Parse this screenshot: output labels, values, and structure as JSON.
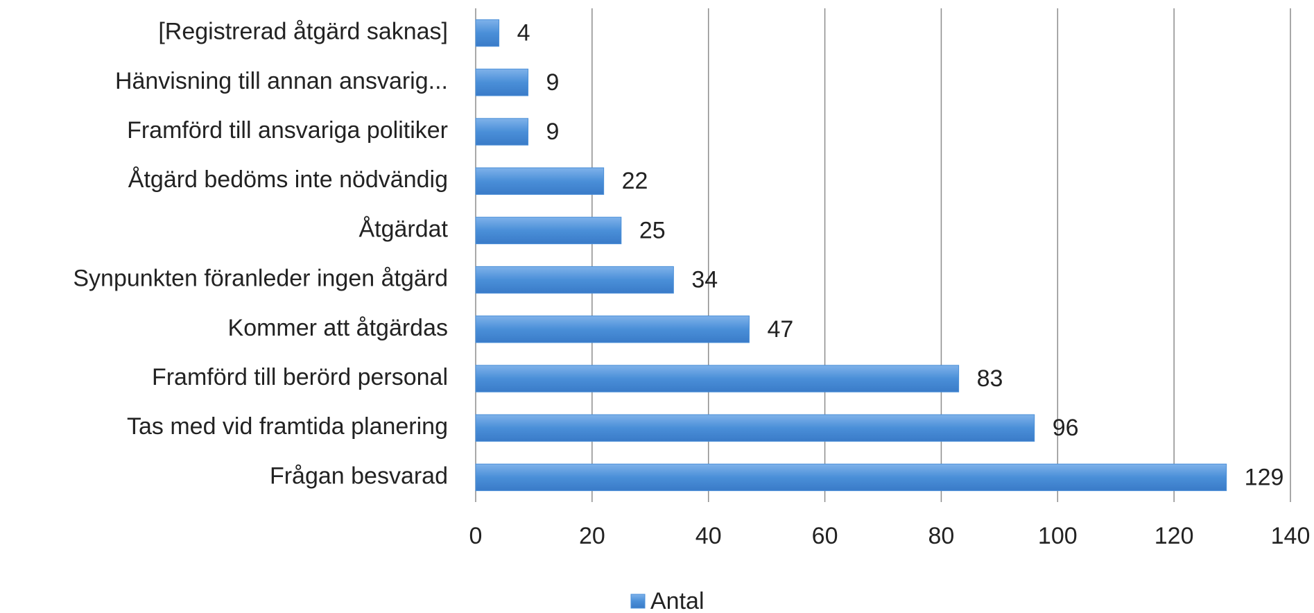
{
  "chart_data": {
    "type": "bar",
    "orientation": "horizontal",
    "categories": [
      "[Registrerad åtgärd saknas]",
      "Hänvisning till annan ansvarig...",
      "Framförd till ansvariga politiker",
      "Åtgärd bedöms inte nödvändig",
      "Åtgärdat",
      "Synpunkten föranleder ingen åtgärd",
      "Kommer att åtgärdas",
      "Framförd till berörd personal",
      "Tas med vid framtida planering",
      "Frågan besvarad"
    ],
    "series": [
      {
        "name": "Antal",
        "color": "#4a8fd8",
        "values": [
          4,
          9,
          9,
          22,
          25,
          34,
          47,
          83,
          96,
          129
        ]
      }
    ],
    "xlim": [
      0,
      140
    ],
    "xticks": [
      0,
      20,
      40,
      60,
      80,
      100,
      120,
      140
    ],
    "grid": true,
    "legend": "bottom"
  }
}
